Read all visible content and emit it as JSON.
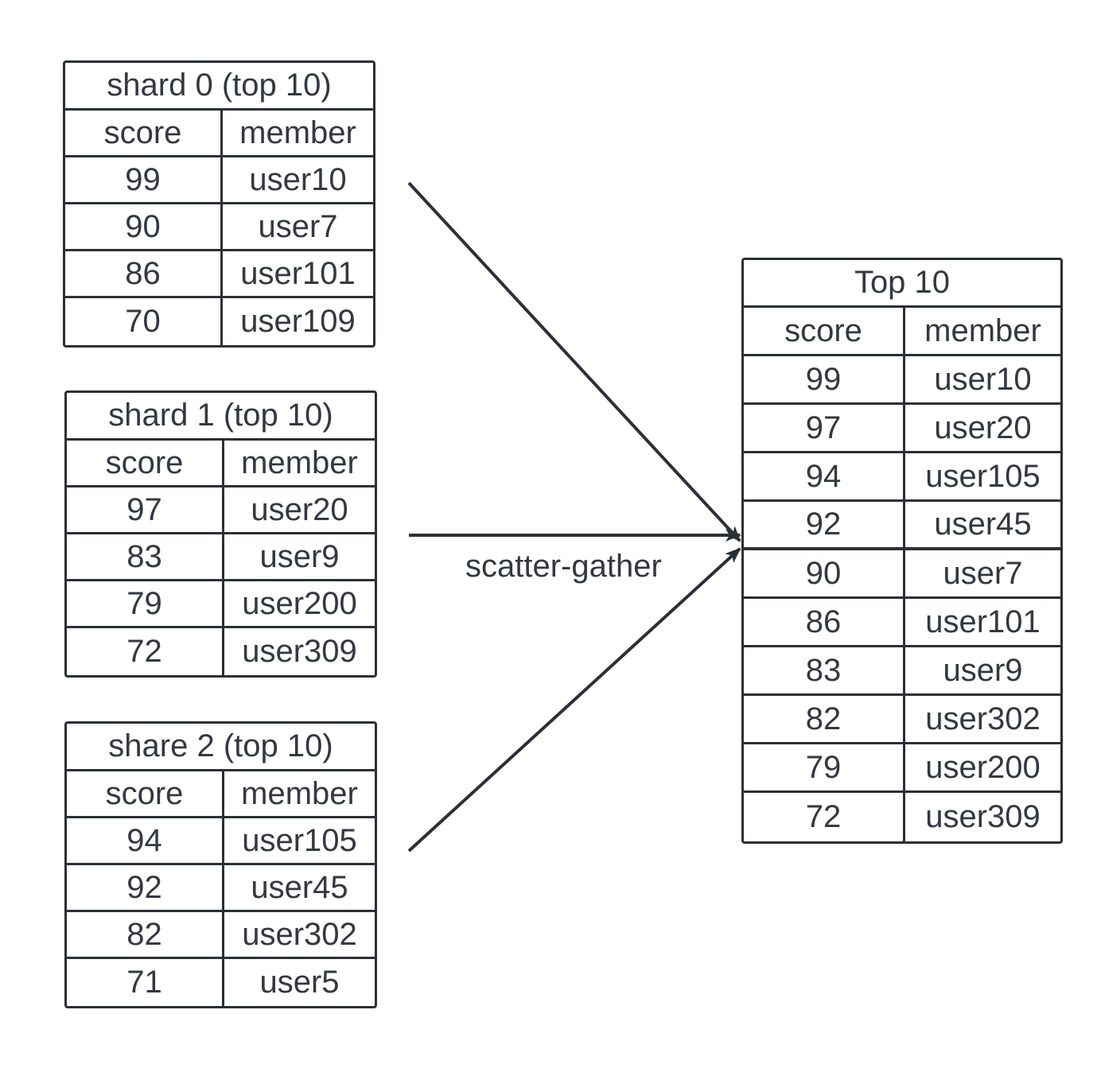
{
  "shards": [
    {
      "title": "shard 0 (top 10)",
      "header": {
        "score": "score",
        "member": "member"
      },
      "rows": [
        {
          "score": "99",
          "member": "user10"
        },
        {
          "score": "90",
          "member": "user7"
        },
        {
          "score": "86",
          "member": "user101"
        },
        {
          "score": "70",
          "member": "user109"
        }
      ]
    },
    {
      "title": "shard 1 (top 10)",
      "header": {
        "score": "score",
        "member": "member"
      },
      "rows": [
        {
          "score": "97",
          "member": "user20"
        },
        {
          "score": "83",
          "member": "user9"
        },
        {
          "score": "79",
          "member": "user200"
        },
        {
          "score": "72",
          "member": "user309"
        }
      ]
    },
    {
      "title": "share 2 (top 10)",
      "header": {
        "score": "score",
        "member": "member"
      },
      "rows": [
        {
          "score": "94",
          "member": "user105"
        },
        {
          "score": "92",
          "member": "user45"
        },
        {
          "score": "82",
          "member": "user302"
        },
        {
          "score": "71",
          "member": "user5"
        }
      ]
    }
  ],
  "edge_label": "scatter-gather",
  "result": {
    "title": "Top 10",
    "header": {
      "score": "score",
      "member": "member"
    },
    "rows": [
      {
        "score": "99",
        "member": "user10"
      },
      {
        "score": "97",
        "member": "user20"
      },
      {
        "score": "94",
        "member": "user105"
      },
      {
        "score": "92",
        "member": "user45"
      },
      {
        "score": "90",
        "member": "user7"
      },
      {
        "score": "86",
        "member": "user101"
      },
      {
        "score": "83",
        "member": "user9"
      },
      {
        "score": "82",
        "member": "user302"
      },
      {
        "score": "79",
        "member": "user200"
      },
      {
        "score": "72",
        "member": "user309"
      }
    ]
  },
  "colors": {
    "stroke": "#2b2f38",
    "text": "#333842",
    "background": "#ffffff"
  }
}
